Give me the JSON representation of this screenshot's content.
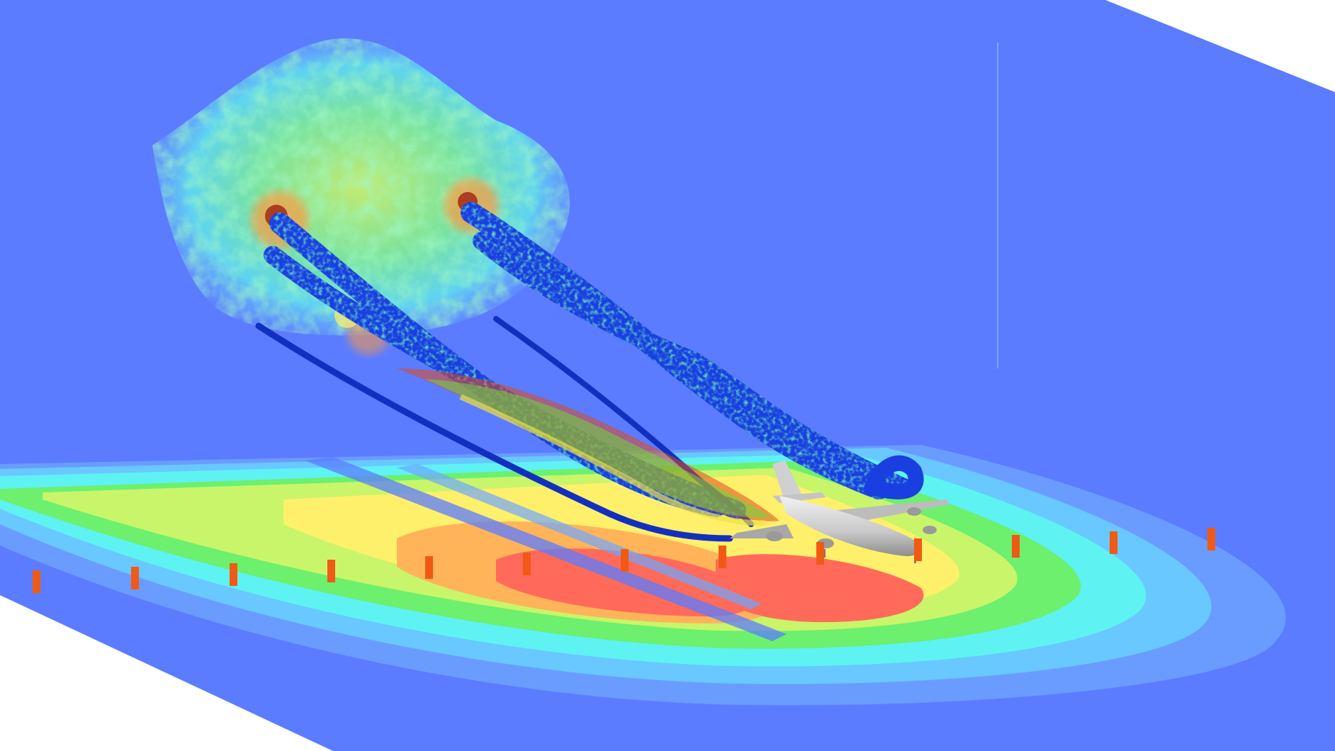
{
  "scene": {
    "colors": {
      "background": "#ffffff",
      "plane": "#5b7cff",
      "contour_stops": [
        "#5b7cff",
        "#6fa6ff",
        "#5ff2f2",
        "#6cf06e",
        "#c9f56a",
        "#fff06b",
        "#ffb45a",
        "#ff6a5a"
      ],
      "marker": "#f05a14",
      "aircraft": "#d6d6d6",
      "aircraft_shadow": "#9a9a9a",
      "vortex_base": "#1a3fe0",
      "vortex_speckle": [
        "#22b4e8",
        "#2fe07a",
        "#c8f040",
        "#1230c0"
      ],
      "debris": [
        "#f0a020",
        "#e04820",
        "#6ad840",
        "#f0e040"
      ],
      "cloud_stops": [
        "#6fd0ff",
        "#5ff2f2",
        "#8ef080",
        "#e8f060",
        "#ff9a40",
        "#a02010"
      ]
    },
    "objects": {
      "aircraft": "airliner-icon",
      "markers": "ground-marker-icon",
      "vortices": "wake-vortex-tubes",
      "cloud": "turbulence-cloud",
      "ground_field": "ground-contour-field",
      "sky_plane": "vertical-slice-plane"
    }
  }
}
